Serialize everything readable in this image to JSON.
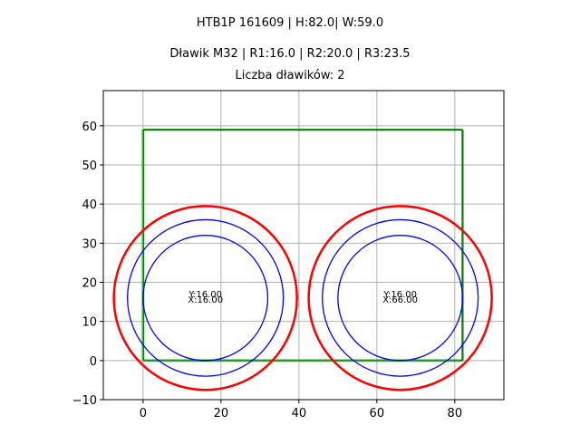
{
  "titles": {
    "line1": "HTB1P 161609 | H:82.0| W:59.0",
    "line2": "Dławik M32 | R1:16.0 | R2:20.0 | R3:23.5",
    "line3": "Liczba dławików: 2"
  },
  "colors": {
    "rectangle": "#008000",
    "outer_circle": "#ff0000",
    "inner_circles": "#0000ff",
    "grid": "#b0b0b0",
    "axes": "#000000"
  },
  "chart_data": {
    "type": "scatter",
    "title": "HTB1P 161609 | H:82.0| W:59.0 / Dławik M32 | R1:16.0 | R2:20.0 | R3:23.5 / Liczba dławików: 2",
    "xlabel": "",
    "ylabel": "",
    "xlim": [
      -10.2,
      92.6
    ],
    "ylim": [
      -10,
      69
    ],
    "grid": true,
    "legend": null,
    "x_ticks": [
      0,
      20,
      40,
      60,
      80
    ],
    "x_tick_labels": [
      "0",
      "20",
      "40",
      "60",
      "80"
    ],
    "y_ticks": [
      -10,
      0,
      10,
      20,
      30,
      40,
      50,
      60
    ],
    "y_tick_labels": [
      "−10",
      "0",
      "10",
      "20",
      "30",
      "40",
      "50",
      "60"
    ],
    "rectangle": {
      "x": 0,
      "y": 0,
      "width": 82,
      "height": 59,
      "color": "#008000"
    },
    "radii": {
      "R1": 16.0,
      "R2": 20.0,
      "R3": 23.5
    },
    "glands": [
      {
        "center": {
          "x": 16.0,
          "y": 16.0
        },
        "label_y": "Y:16.00",
        "label_x": "X:16.00",
        "circles": [
          {
            "r": 16.0,
            "color": "#0000ff"
          },
          {
            "r": 20.0,
            "color": "#0000ff"
          },
          {
            "r": 23.5,
            "color": "#ff0000"
          }
        ]
      },
      {
        "center": {
          "x": 66.0,
          "y": 16.0
        },
        "label_y": "Y:16.00",
        "label_x": "X:66.00",
        "circles": [
          {
            "r": 16.0,
            "color": "#0000ff"
          },
          {
            "r": 20.0,
            "color": "#0000ff"
          },
          {
            "r": 23.5,
            "color": "#ff0000"
          }
        ]
      }
    ]
  }
}
